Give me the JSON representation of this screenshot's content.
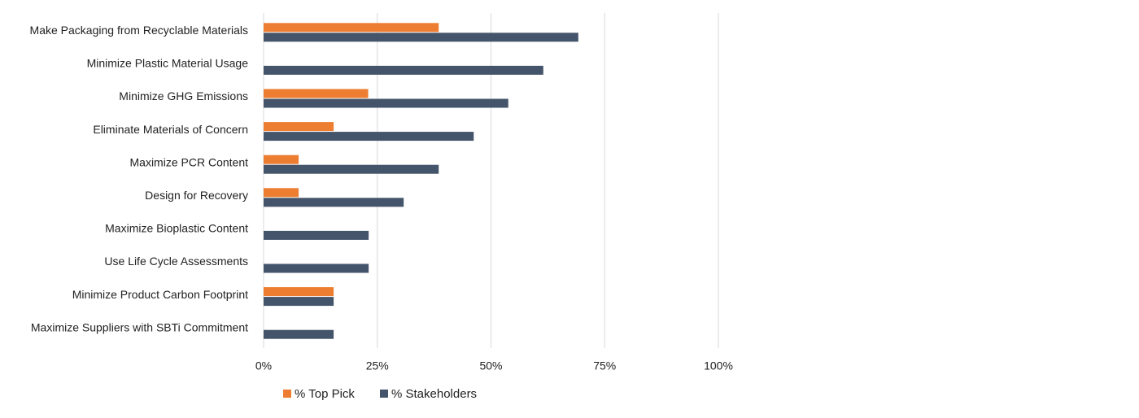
{
  "chart_data": {
    "type": "bar",
    "orientation": "horizontal",
    "categories": [
      "Make Packaging from Recyclable Materials",
      "Minimize Plastic Material Usage",
      "Minimize GHG Emissions",
      "Eliminate Materials of Concern",
      "Maximize PCR Content",
      "Design for Recovery",
      "Maximize Bioplastic Content",
      "Use Life Cycle Assessments",
      "Minimize Product Carbon Footprint",
      "Maximize Suppliers with SBTi Commitment"
    ],
    "series": [
      {
        "name": "%  Top Pick",
        "color": "#ed7d31",
        "values": [
          38.5,
          null,
          23,
          15.4,
          7.7,
          7.7,
          null,
          null,
          15.4,
          null
        ]
      },
      {
        "name": "% Stakeholders",
        "color": "#44546a",
        "values": [
          69.2,
          61.5,
          53.8,
          46.2,
          38.5,
          30.8,
          23.1,
          23.1,
          15.4,
          15.4
        ]
      }
    ],
    "xlim": [
      0,
      100
    ],
    "xticks": [
      "0%",
      "25%",
      "50%",
      "75%",
      "100%"
    ],
    "grid": true,
    "legend_position": "bottom-left"
  }
}
